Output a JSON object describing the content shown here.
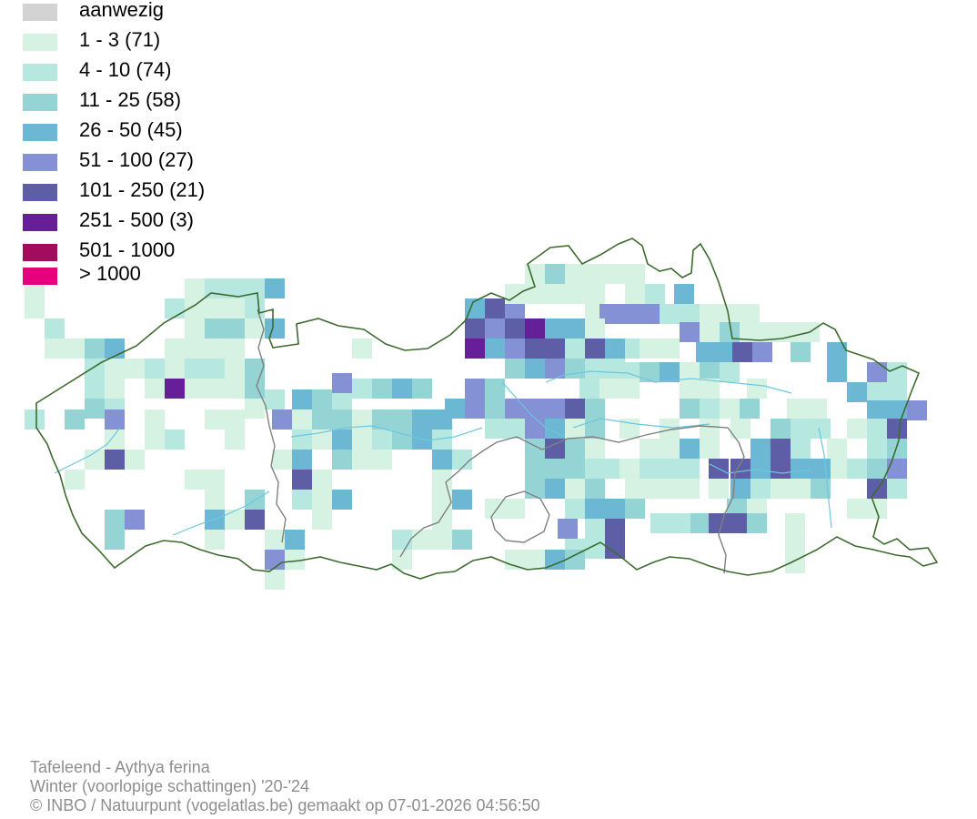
{
  "legend": {
    "items": [
      {
        "label": "aanwezig",
        "color": "#d3d3d3"
      },
      {
        "label": "1 - 3 (71)",
        "color": "#d6f2e3"
      },
      {
        "label": "4 - 10 (74)",
        "color": "#b6e8df"
      },
      {
        "label": "11 - 25 (58)",
        "color": "#95d4d4"
      },
      {
        "label": "26 - 50 (45)",
        "color": "#6cb8d4"
      },
      {
        "label": "51 - 100 (27)",
        "color": "#8491d4"
      },
      {
        "label": "101 - 250 (21)",
        "color": "#5d5ea6"
      },
      {
        "label": "251 - 500 (3)",
        "color": "#661f99"
      },
      {
        "label": "501 - 1000",
        "color": "#a30c5c"
      },
      {
        "label": "> 1000",
        "color": "#e6007e"
      }
    ]
  },
  "map": {
    "border_color": "#3d6b2f",
    "province_border_color": "#808080",
    "river_color": "#6cc7e0"
  },
  "caption": {
    "species": "Tafeleend - Aythya ferina",
    "period": "Winter (voorlopige schattingen) '20-'24",
    "credit": "© INBO / Natuurpunt (vogelatlas.be) gemaakt op 07-01-2026 04:56:50"
  }
}
